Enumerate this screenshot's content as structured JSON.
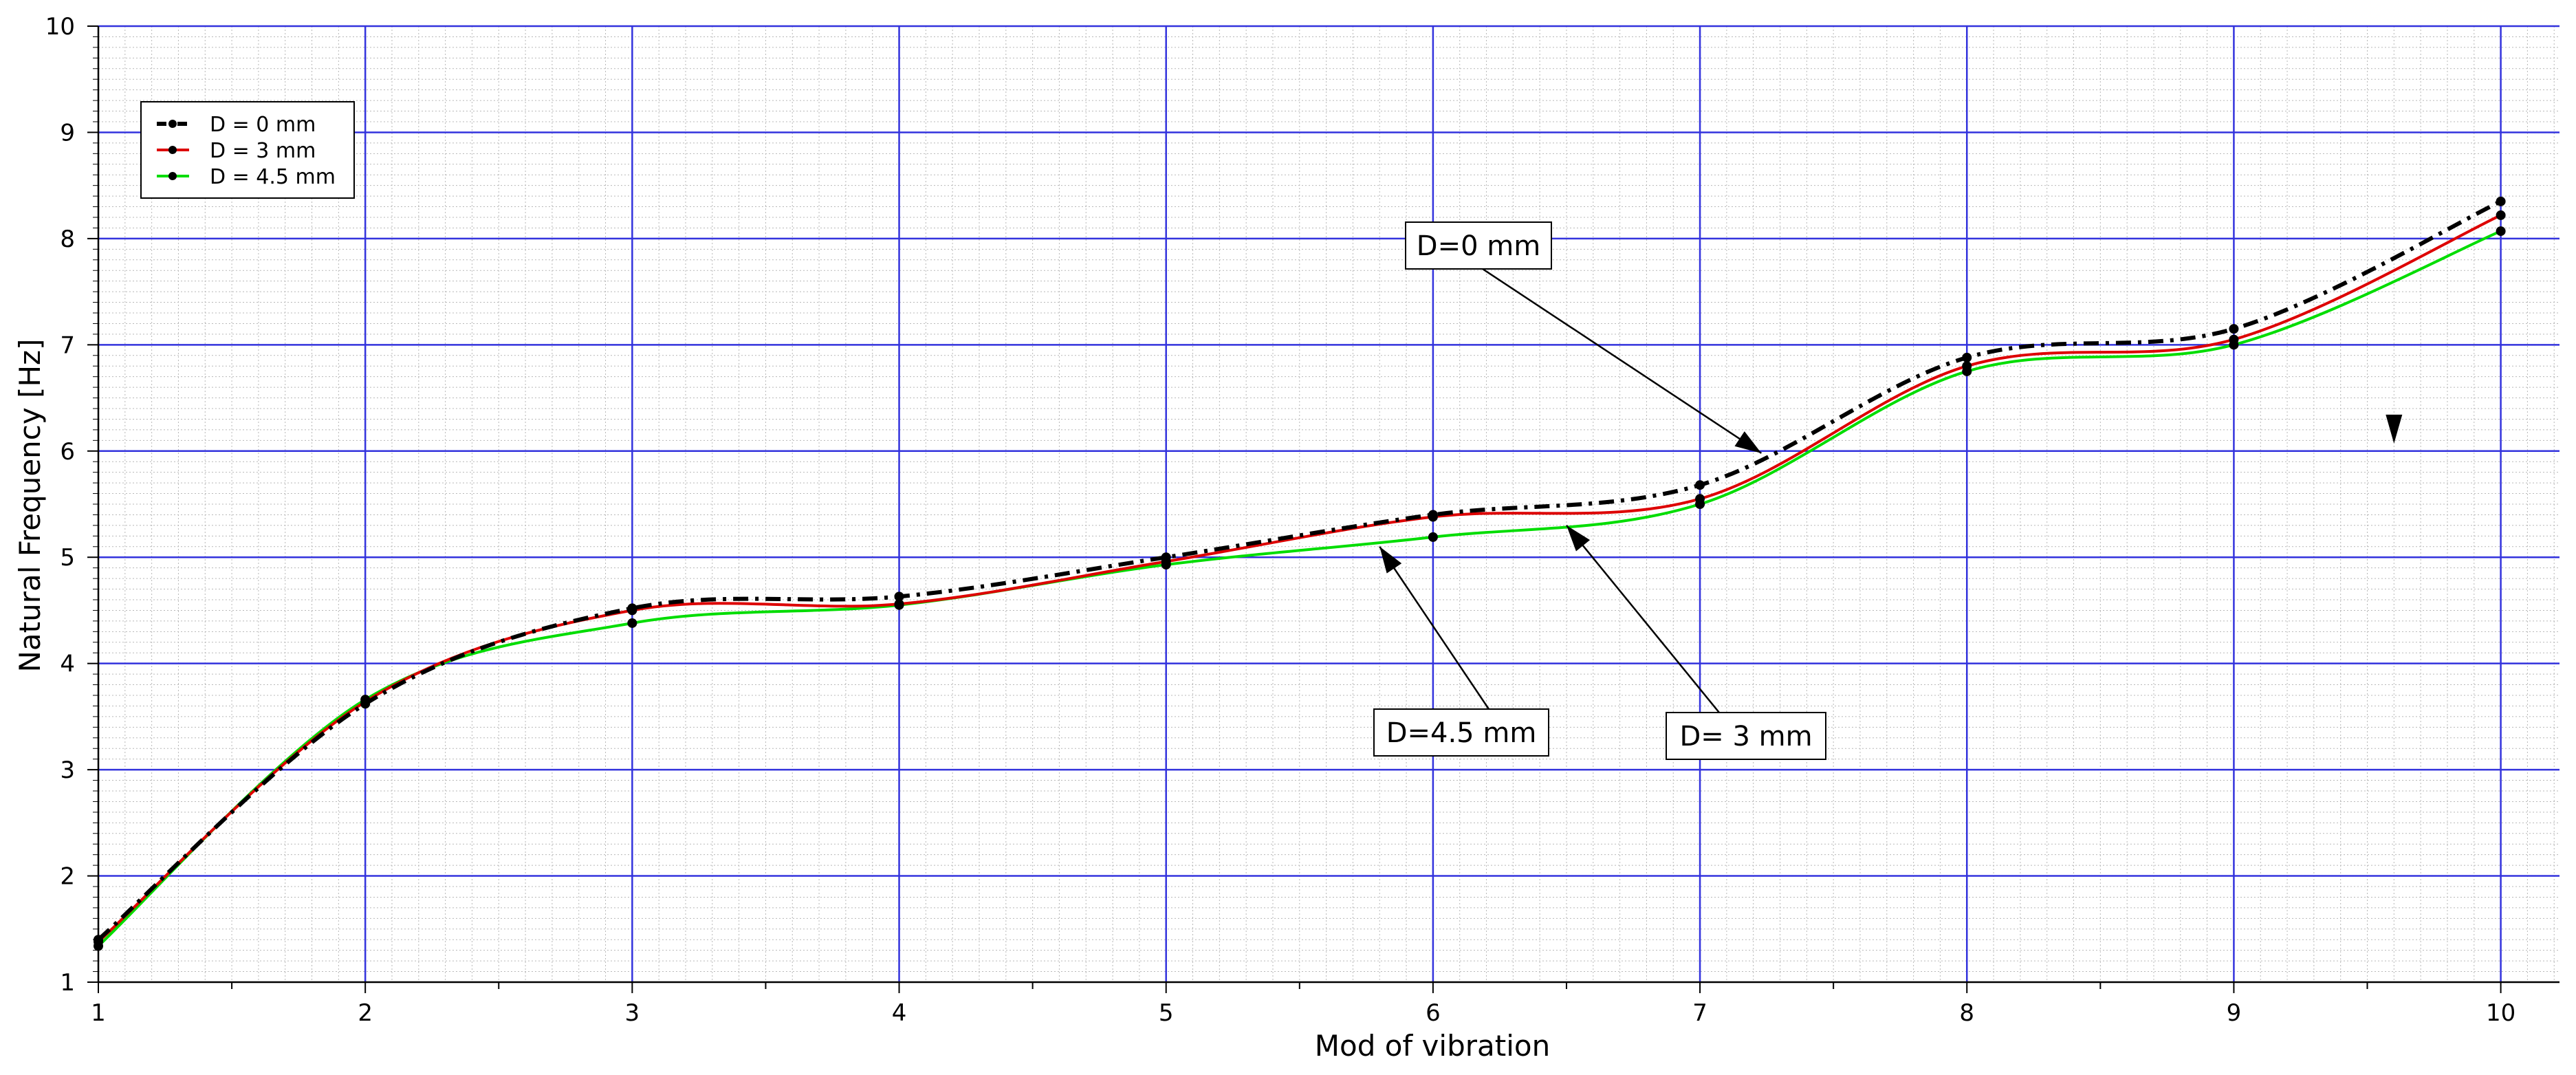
{
  "chart_data": {
    "type": "line",
    "xlabel": "Mod of vibration",
    "ylabel": "Natural Frequency [Hz]",
    "xlim": [
      1,
      10.22
    ],
    "ylim": [
      1,
      10
    ],
    "x_ticks": [
      1,
      2,
      3,
      4,
      5,
      6,
      7,
      8,
      9,
      10
    ],
    "y_ticks": [
      1,
      2,
      3,
      4,
      5,
      6,
      7,
      8,
      9,
      10
    ],
    "grid": true,
    "legend_position": "top-left",
    "x": [
      1,
      2,
      3,
      4,
      5,
      6,
      7,
      8,
      9,
      10
    ],
    "series": [
      {
        "name": "D = 0 mm",
        "color": "#000000",
        "style": "dash-dot",
        "values": [
          1.4,
          3.62,
          4.52,
          4.63,
          5.0,
          5.4,
          5.68,
          6.88,
          7.15,
          8.35
        ]
      },
      {
        "name": "D = 3 mm",
        "color": "#dd0000",
        "style": "solid",
        "values": [
          1.38,
          3.64,
          4.5,
          4.56,
          4.96,
          5.38,
          5.55,
          6.8,
          7.05,
          8.22
        ]
      },
      {
        "name": "D = 4.5 mm",
        "color": "#00dd00",
        "style": "solid",
        "values": [
          1.34,
          3.66,
          4.38,
          4.55,
          4.93,
          5.19,
          5.5,
          6.75,
          7.0,
          8.07
        ]
      }
    ],
    "annotations": [
      {
        "text": "D=0 mm",
        "target_x": 7.23,
        "target_y": 5.98
      },
      {
        "text": "D= 3 mm",
        "target_x": 6.5,
        "target_y": 5.3
      },
      {
        "text": "D=4.5 mm",
        "target_x": 5.8,
        "target_y": 5.1
      }
    ],
    "extra_marker": {
      "x": 9.6,
      "y": 6.2
    }
  }
}
